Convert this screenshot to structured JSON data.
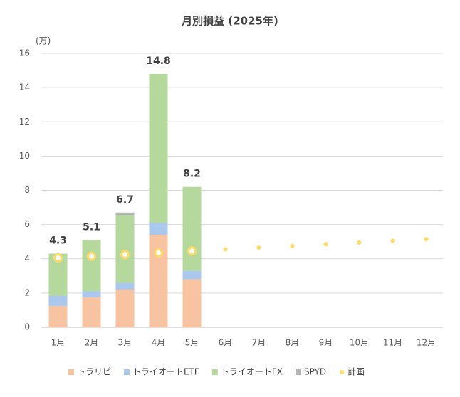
{
  "chart_data": {
    "type": "stacked_bar",
    "title": "月別損益 (2025年)",
    "y_label": "(万)",
    "categories": [
      "1月",
      "2月",
      "3月",
      "4月",
      "5月",
      "6月",
      "7月",
      "8月",
      "9月",
      "10月",
      "11月",
      "12月"
    ],
    "series": [
      {
        "name": "トラリピ",
        "color": "#f8c3a0",
        "values": [
          1.25,
          1.75,
          2.2,
          5.4,
          2.8,
          null,
          null,
          null,
          null,
          null,
          null,
          null
        ]
      },
      {
        "name": "トライオートETF",
        "color": "#a9c8ec",
        "values": [
          0.6,
          0.35,
          0.4,
          0.7,
          0.5,
          null,
          null,
          null,
          null,
          null,
          null,
          null
        ]
      },
      {
        "name": "トライオートFX",
        "color": "#b5d99c",
        "values": [
          2.45,
          3.0,
          3.95,
          8.7,
          4.9,
          null,
          null,
          null,
          null,
          null,
          null,
          null
        ]
      },
      {
        "name": "SPYD",
        "color": "#b4b4b4",
        "values": [
          0,
          0,
          0.15,
          0,
          0,
          null,
          null,
          null,
          null,
          null,
          null,
          null
        ]
      }
    ],
    "totals": [
      4.3,
      5.1,
      6.7,
      14.8,
      8.2,
      null,
      null,
      null,
      null,
      null,
      null,
      null
    ],
    "plan": {
      "name": "計画",
      "color": "#ffd966",
      "values": [
        4.05,
        4.15,
        4.25,
        4.35,
        4.45,
        4.55,
        4.65,
        4.75,
        4.85,
        4.95,
        5.05,
        5.15
      ]
    },
    "ylim": [
      0,
      16
    ],
    "yticks": [
      0,
      2,
      4,
      6,
      8,
      10,
      12,
      14,
      16
    ],
    "grid": true
  }
}
